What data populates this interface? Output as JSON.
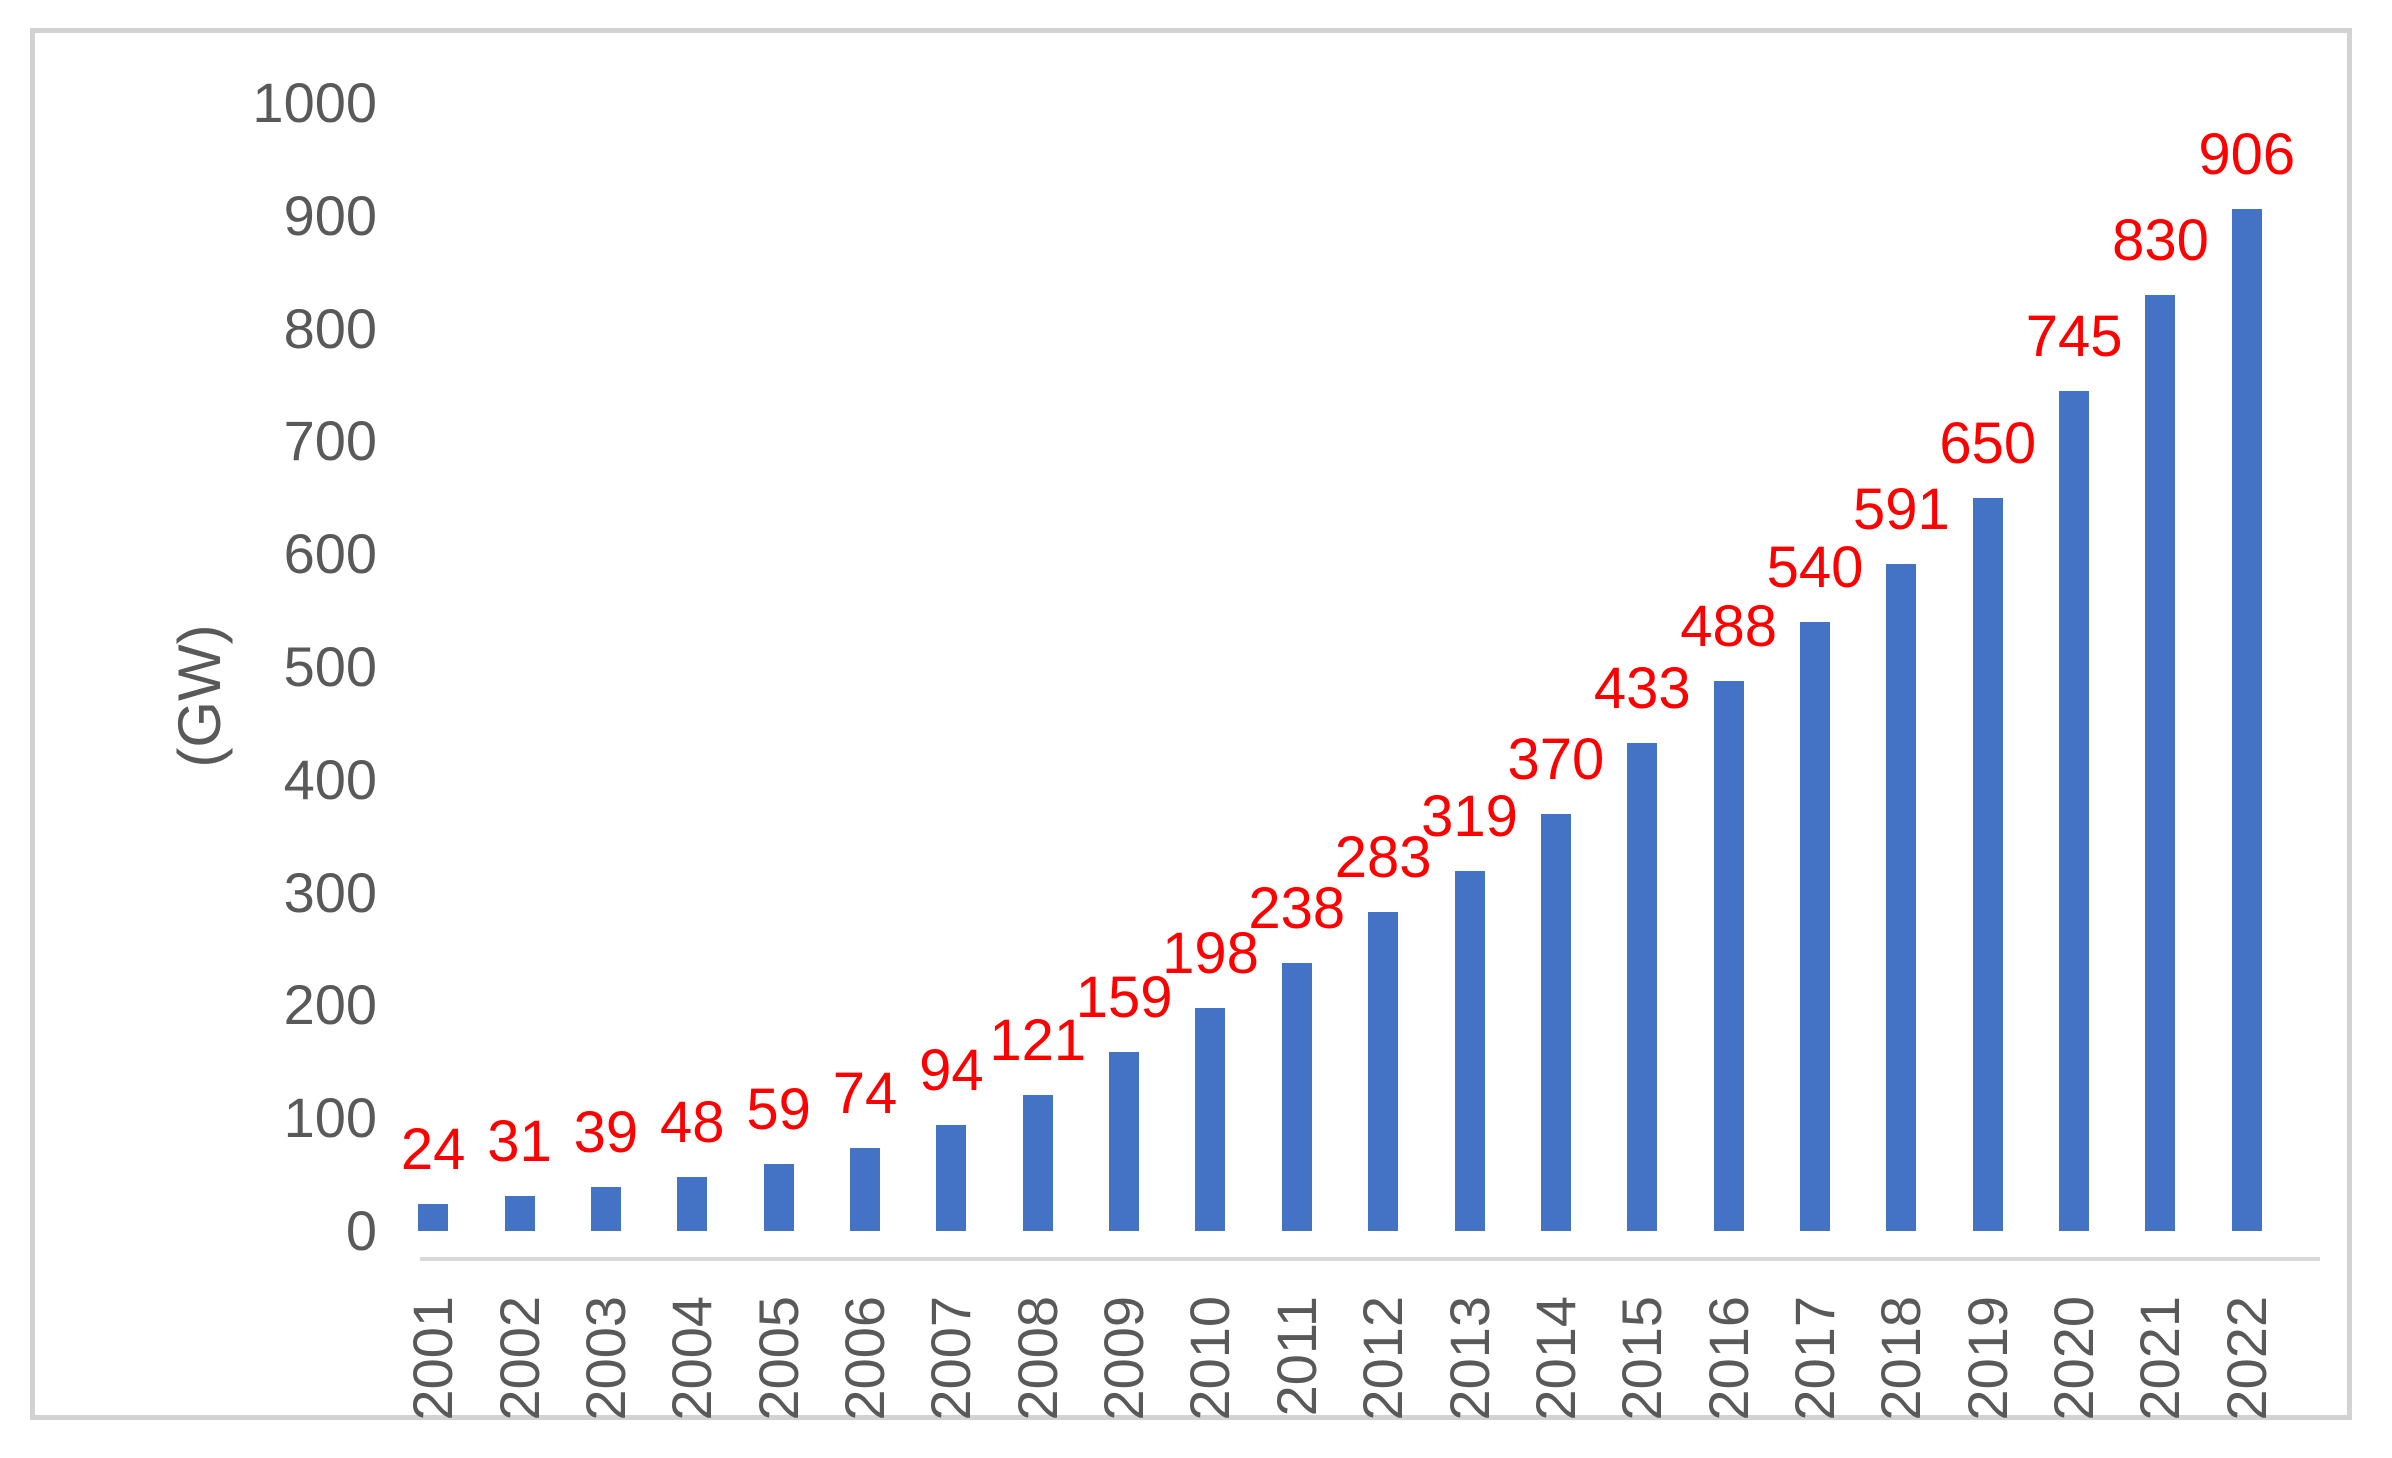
{
  "chart_data": {
    "type": "bar",
    "title": "",
    "xlabel": "",
    "ylabel": "(GW)",
    "categories": [
      "2001",
      "2002",
      "2003",
      "2004",
      "2005",
      "2006",
      "2007",
      "2008",
      "2009",
      "2010",
      "2011",
      "2012",
      "2013",
      "2014",
      "2015",
      "2016",
      "2017",
      "2018",
      "2019",
      "2020",
      "2021",
      "2022"
    ],
    "values": [
      24,
      31,
      39,
      48,
      59,
      74,
      94,
      121,
      159,
      198,
      238,
      283,
      319,
      370,
      433,
      488,
      540,
      591,
      650,
      745,
      830,
      906
    ],
    "data_labels_shown": true,
    "ylim": [
      0,
      1000
    ],
    "ytick_step": 100,
    "yticks": [
      "0",
      "100",
      "200",
      "300",
      "400",
      "500",
      "600",
      "700",
      "800",
      "900",
      "1000"
    ],
    "grid": false,
    "legend": false,
    "bar_color": "#4472C4",
    "data_label_color": "#FF0000",
    "axis_text_color": "#595959",
    "axis_line_color": "#D9D9D9",
    "frame_border_color": "#D2D2D2"
  }
}
